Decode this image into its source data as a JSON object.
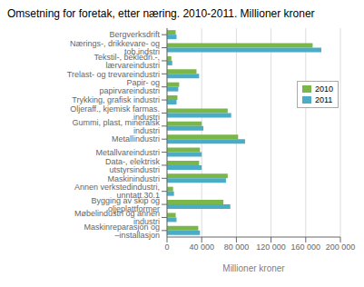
{
  "chart_data": {
    "type": "bar",
    "orientation": "horizontal",
    "title": "Omsetning for foretak, etter næring. 2010-2011. Millioner kroner",
    "categories": [
      "Bergverksdrift",
      "Nærings-, drikkevare- og tob.indstri",
      "Tekstil-, bekledn.-, lærvareindustri",
      "Trelast- og trevareindustri",
      "Papir- og papirvareindustri",
      "Trykking, grafisk industri",
      "Oljeraff., kjemisk farmas. industri",
      "Gummi, plast, mineralsk industri",
      "Metallindustri",
      "Metallvareindustri",
      "Data-, elektrisk utstyrsindustri",
      "Maskinindustri",
      "Annen verkstedindustri, unntatt 30.1",
      "Bygging av skip og oljeplattformer",
      "Møbelindustri og annen industri",
      "Maskinreparasjon og –installasjon"
    ],
    "series": [
      {
        "name": "2010",
        "color": "#7ab648",
        "values": [
          10000,
          168000,
          5000,
          34000,
          14000,
          12000,
          70000,
          40000,
          82000,
          38000,
          37000,
          70000,
          7000,
          65000,
          10000,
          36000
        ]
      },
      {
        "name": "2011",
        "color": "#4bacc6",
        "values": [
          11000,
          178000,
          6000,
          37000,
          13000,
          11000,
          74000,
          42000,
          90000,
          40000,
          40000,
          68000,
          8000,
          73000,
          11000,
          38000
        ]
      }
    ],
    "xlabel": "Millioner kroner",
    "xlim": [
      0,
      200000
    ],
    "xticks": [
      0,
      {
        "value": 40000,
        "label": "40 000"
      },
      {
        "value": 80000,
        "label": "80 000"
      },
      {
        "value": 120000,
        "label": "120 000"
      },
      {
        "value": 160000,
        "label": "160 000"
      },
      {
        "value": 200000,
        "label": "200 000"
      }
    ],
    "grid": true,
    "legend": "right"
  }
}
